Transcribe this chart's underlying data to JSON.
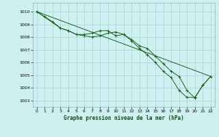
{
  "title": "Graphe pression niveau de la mer (hPa)",
  "bg_color": "#cff0f0",
  "grid_color": "#aad8d8",
  "line_color": "#1a5c1a",
  "marker_color": "#1a5c1a",
  "xlim": [
    -0.5,
    22.5
  ],
  "ylim": [
    1002.5,
    1010.7
  ],
  "xticks": [
    0,
    1,
    2,
    3,
    4,
    5,
    6,
    7,
    8,
    9,
    10,
    11,
    12,
    13,
    14,
    15,
    16,
    17,
    18,
    19,
    20,
    21,
    22
  ],
  "yticks": [
    1003,
    1004,
    1005,
    1006,
    1007,
    1008,
    1009,
    1010
  ],
  "series": [
    {
      "x": [
        0,
        1,
        2,
        3,
        4,
        5,
        6,
        7,
        8,
        9,
        10,
        11,
        12,
        13,
        14,
        15,
        16,
        17,
        18,
        19,
        20,
        21,
        22
      ],
      "y": [
        1010.0,
        1009.6,
        1009.2,
        1008.7,
        1008.5,
        1008.2,
        1008.2,
        1008.3,
        1008.5,
        1008.5,
        1008.1,
        1008.2,
        1007.8,
        1007.3,
        1007.1,
        1006.5,
        1005.9,
        1005.3,
        1004.9,
        1003.8,
        1003.2,
        1004.2,
        1004.9
      ],
      "has_marker": true,
      "markersize": 2.5
    },
    {
      "x": [
        0,
        3,
        4,
        5,
        6,
        7,
        8,
        9,
        10,
        11,
        12,
        13,
        14,
        15,
        16,
        17,
        18,
        19,
        20,
        21,
        22
      ],
      "y": [
        1010.0,
        1008.7,
        1008.5,
        1008.2,
        1008.1,
        1008.0,
        1008.1,
        1008.3,
        1008.4,
        1008.2,
        1007.7,
        1007.1,
        1006.6,
        1006.0,
        1005.3,
        1004.8,
        1003.8,
        1003.25,
        1003.25,
        1004.2,
        1004.9
      ],
      "has_marker": true,
      "markersize": 2.5
    },
    {
      "x": [
        0,
        22
      ],
      "y": [
        1010.0,
        1004.9
      ],
      "has_marker": false,
      "markersize": 0
    }
  ],
  "figsize": [
    3.2,
    2.0
  ],
  "dpi": 100
}
